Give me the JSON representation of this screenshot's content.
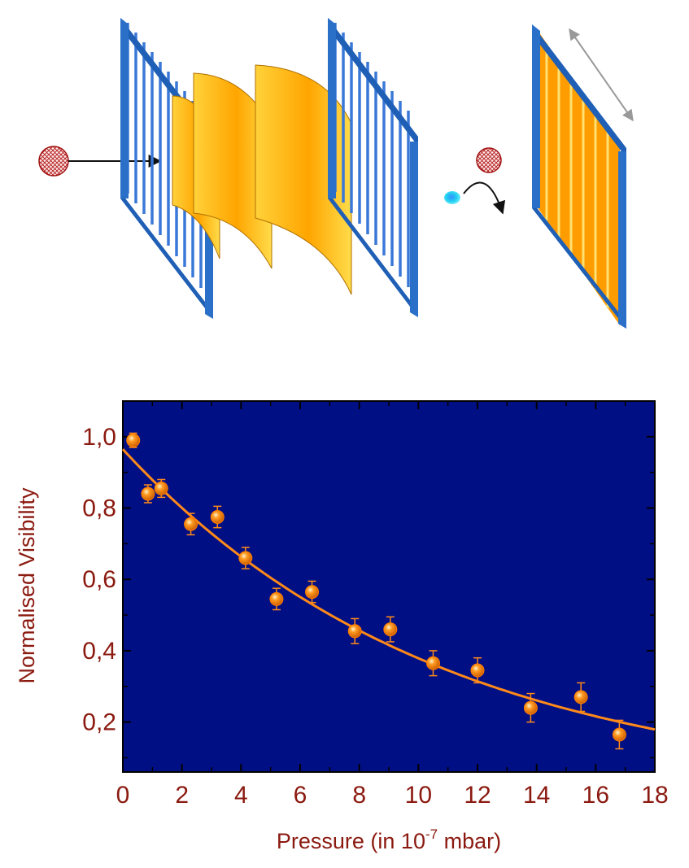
{
  "colors": {
    "plot_background": "#000f84",
    "data_color": "#ff8a1a",
    "text_color": "#8b1a10",
    "grating_blue": "#1f5fb5",
    "plate_yellow": "#ffb000"
  },
  "diagram": {
    "icons": [
      "molecule-icon",
      "grating-icon",
      "lens-plate-icon",
      "detector-grating-icon",
      "arrow-icon"
    ]
  },
  "chart_data": {
    "type": "scatter",
    "xlabel": "Pressure (in 10",
    "xlabel_exponent": "-7",
    "xlabel_suffix": " mbar)",
    "ylabel": "Normalised Visibility",
    "xlim": [
      0,
      18
    ],
    "ylim": [
      0.06,
      1.1
    ],
    "grid": false,
    "legend": "none",
    "x_ticks": [
      "0",
      "2",
      "4",
      "6",
      "8",
      "10",
      "12",
      "14",
      "16",
      "18"
    ],
    "y_ticks": [
      "0,2",
      "0,4",
      "0,6",
      "0,8",
      "1,0"
    ],
    "series": [
      {
        "type": "scatter-with-errorbars",
        "points": [
          {
            "x": 0.35,
            "y": 0.99,
            "err": 0.02
          },
          {
            "x": 0.85,
            "y": 0.84,
            "err": 0.025
          },
          {
            "x": 1.3,
            "y": 0.855,
            "err": 0.025
          },
          {
            "x": 2.3,
            "y": 0.755,
            "err": 0.03
          },
          {
            "x": 3.2,
            "y": 0.775,
            "err": 0.03
          },
          {
            "x": 4.15,
            "y": 0.66,
            "err": 0.03
          },
          {
            "x": 5.2,
            "y": 0.545,
            "err": 0.03
          },
          {
            "x": 6.4,
            "y": 0.565,
            "err": 0.03
          },
          {
            "x": 7.85,
            "y": 0.455,
            "err": 0.035
          },
          {
            "x": 9.05,
            "y": 0.46,
            "err": 0.035
          },
          {
            "x": 10.5,
            "y": 0.365,
            "err": 0.035
          },
          {
            "x": 12.0,
            "y": 0.345,
            "err": 0.035
          },
          {
            "x": 13.8,
            "y": 0.24,
            "err": 0.04
          },
          {
            "x": 15.5,
            "y": 0.27,
            "err": 0.04
          },
          {
            "x": 16.8,
            "y": 0.165,
            "err": 0.04
          }
        ]
      },
      {
        "type": "fit-curve",
        "model": "exponential",
        "amplitude": 0.965,
        "decay_per_unit": 0.0935,
        "x_range": [
          0,
          18
        ]
      }
    ]
  }
}
